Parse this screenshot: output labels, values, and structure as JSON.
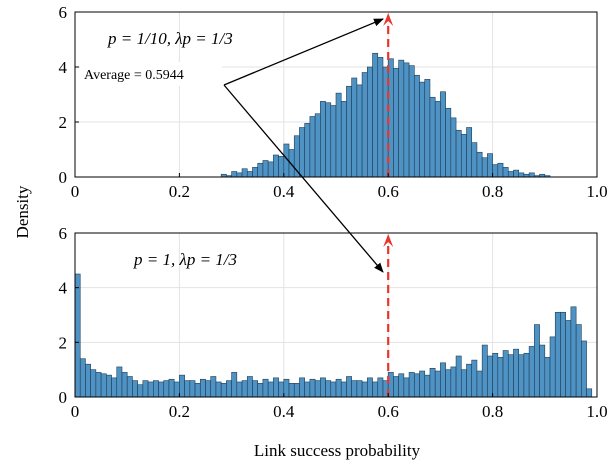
{
  "figure": {
    "ylabel": "Density",
    "xlabel": "Link success probability"
  },
  "chart_data": [
    {
      "type": "bar",
      "title": "",
      "xlim": [
        0,
        1.0
      ],
      "ylim": [
        0,
        6
      ],
      "grid": true,
      "bin_width": 0.01,
      "bar_color": "#4f93c5",
      "xticks": [
        "0",
        "0.2",
        "0.4",
        "0.6",
        "0.8",
        "1.0"
      ],
      "yticks": [
        "0",
        "2",
        "4",
        "6"
      ],
      "annotation": "p = 1/10,  λp = 1/3",
      "average_label": "Average = 0.5944",
      "average_value": 0.5944,
      "average_line_x": 0.6,
      "bin_starts": [
        0.28,
        0.29,
        0.3,
        0.31,
        0.32,
        0.33,
        0.34,
        0.35,
        0.36,
        0.37,
        0.38,
        0.39,
        0.4,
        0.41,
        0.42,
        0.43,
        0.44,
        0.45,
        0.46,
        0.47,
        0.48,
        0.49,
        0.5,
        0.51,
        0.52,
        0.53,
        0.54,
        0.55,
        0.56,
        0.57,
        0.58,
        0.59,
        0.6,
        0.61,
        0.62,
        0.63,
        0.64,
        0.65,
        0.66,
        0.67,
        0.68,
        0.69,
        0.7,
        0.71,
        0.72,
        0.73,
        0.74,
        0.75,
        0.76,
        0.77,
        0.78,
        0.79,
        0.8,
        0.81,
        0.82,
        0.83,
        0.84,
        0.85,
        0.86,
        0.87,
        0.88,
        0.89,
        0.9
      ],
      "values": [
        0.1,
        0.05,
        0.2,
        0.15,
        0.3,
        0.2,
        0.35,
        0.5,
        0.6,
        0.55,
        0.8,
        0.75,
        1.2,
        1.0,
        1.5,
        1.8,
        1.95,
        2.2,
        2.3,
        2.75,
        2.7,
        2.6,
        3.05,
        2.75,
        3.3,
        3.6,
        3.35,
        3.8,
        4.0,
        4.5,
        4.35,
        4.0,
        4.3,
        3.95,
        4.25,
        4.15,
        4.05,
        3.7,
        3.45,
        3.55,
        2.9,
        2.75,
        3.1,
        2.5,
        2.15,
        1.7,
        1.55,
        1.8,
        1.25,
        0.9,
        0.7,
        0.85,
        0.45,
        0.5,
        0.35,
        0.2,
        0.25,
        0.15,
        0.1,
        0.15,
        0.05,
        0.1,
        0.05
      ]
    },
    {
      "type": "bar",
      "title": "",
      "xlim": [
        0,
        1.0
      ],
      "ylim": [
        0,
        6
      ],
      "grid": true,
      "bin_width": 0.01,
      "bar_color": "#4f93c5",
      "xticks": [
        "0",
        "0.2",
        "0.4",
        "0.6",
        "0.8",
        "1.0"
      ],
      "yticks": [
        "0",
        "2",
        "4",
        "6"
      ],
      "annotation": "p = 1,  λp = 1/3",
      "average_line_x": 0.6,
      "bin_starts": [
        0.0,
        0.01,
        0.02,
        0.03,
        0.04,
        0.05,
        0.06,
        0.07,
        0.08,
        0.09,
        0.1,
        0.11,
        0.12,
        0.13,
        0.14,
        0.15,
        0.16,
        0.17,
        0.18,
        0.19,
        0.2,
        0.21,
        0.22,
        0.23,
        0.24,
        0.25,
        0.26,
        0.27,
        0.28,
        0.29,
        0.3,
        0.31,
        0.32,
        0.33,
        0.34,
        0.35,
        0.36,
        0.37,
        0.38,
        0.39,
        0.4,
        0.41,
        0.42,
        0.43,
        0.44,
        0.45,
        0.46,
        0.47,
        0.48,
        0.49,
        0.5,
        0.51,
        0.52,
        0.53,
        0.54,
        0.55,
        0.56,
        0.57,
        0.58,
        0.59,
        0.6,
        0.61,
        0.62,
        0.63,
        0.64,
        0.65,
        0.66,
        0.67,
        0.68,
        0.69,
        0.7,
        0.71,
        0.72,
        0.73,
        0.74,
        0.75,
        0.76,
        0.77,
        0.78,
        0.79,
        0.8,
        0.81,
        0.82,
        0.83,
        0.84,
        0.85,
        0.86,
        0.87,
        0.88,
        0.89,
        0.9,
        0.91,
        0.92,
        0.93,
        0.94,
        0.95,
        0.96,
        0.97,
        0.98
      ],
      "values": [
        4.5,
        1.4,
        1.2,
        1.0,
        0.9,
        0.85,
        0.8,
        0.7,
        1.1,
        0.9,
        0.75,
        0.6,
        0.45,
        0.6,
        0.55,
        0.6,
        0.55,
        0.6,
        0.65,
        0.55,
        0.8,
        0.6,
        0.6,
        0.5,
        0.65,
        0.6,
        0.75,
        0.55,
        0.5,
        0.6,
        0.9,
        0.55,
        0.6,
        0.75,
        0.6,
        0.5,
        0.65,
        0.55,
        0.7,
        0.55,
        0.65,
        0.5,
        0.5,
        0.7,
        0.55,
        0.65,
        0.6,
        0.7,
        0.6,
        0.55,
        0.65,
        0.55,
        0.75,
        0.6,
        0.6,
        0.55,
        0.7,
        0.55,
        0.7,
        0.6,
        0.9,
        0.75,
        0.85,
        0.7,
        0.9,
        0.85,
        0.95,
        0.8,
        1.05,
        0.95,
        1.25,
        1.0,
        1.1,
        1.5,
        1.0,
        1.2,
        1.35,
        0.95,
        1.9,
        1.5,
        1.6,
        1.45,
        1.7,
        1.55,
        1.75,
        1.55,
        1.6,
        1.85,
        2.65,
        1.9,
        1.45,
        2.2,
        3.1,
        3.1,
        2.8,
        3.3,
        2.65,
        2.05,
        0.3
      ]
    }
  ]
}
